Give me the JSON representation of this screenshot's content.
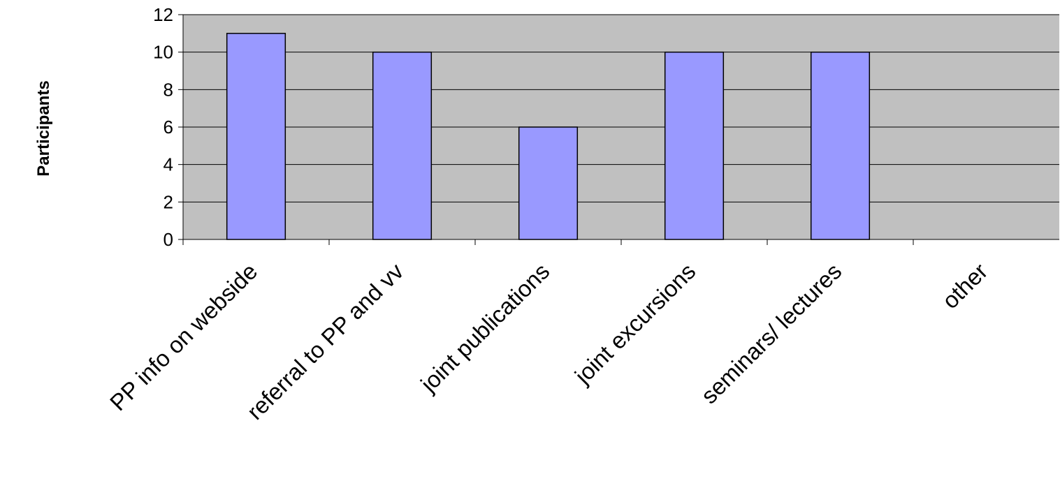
{
  "chart_data": {
    "type": "bar",
    "title": "",
    "xlabel": "",
    "ylabel": "Participants",
    "categories": [
      "PP info on webside",
      "referral to PP and vv",
      "joint publications",
      "joint excursions",
      "seminars/ lectures",
      "other"
    ],
    "values": [
      11,
      10,
      6,
      10,
      10,
      0
    ],
    "ylim": [
      0,
      12
    ],
    "yticks": [
      0,
      2,
      4,
      6,
      8,
      10,
      12
    ],
    "grid": true,
    "legend": "none",
    "colors": {
      "plot_background": "#c0c0c0",
      "bar_fill": "#9999ff",
      "bar_stroke": "#000000",
      "gridline": "#000000"
    }
  }
}
